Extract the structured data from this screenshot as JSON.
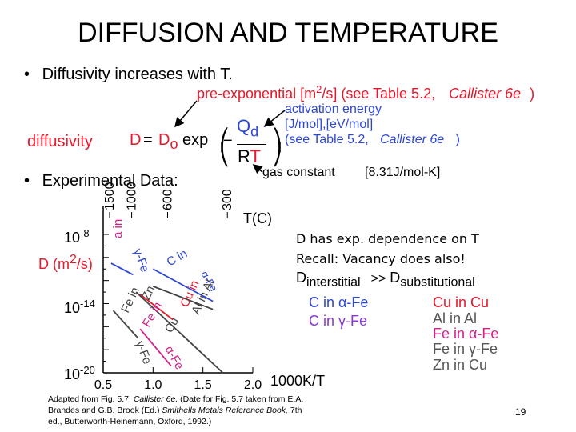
{
  "title": "DIFFUSION AND TEMPERATURE",
  "bullets": {
    "b1": "Diffusivity increases with T.",
    "b2": "Experimental Data:"
  },
  "equation": {
    "diffusivity_label": "diffusivity",
    "D": "D",
    "equals": "=",
    "D0_D": "D",
    "D0_sub": "o",
    "exp": "exp",
    "minus": "−",
    "Q": "Q",
    "d_sub": "d",
    "R": "R",
    "T": "T",
    "preexp_a": "pre-exponential [m",
    "preexp_sup": "2",
    "preexp_b": "/s] (see Table 5.2,",
    "preexp_italic": "Callister 6e",
    "preexp_close": ")",
    "act1": "activation energy",
    "act2": "[J/mol],[eV/mol]",
    "act3": "(see Table 5.2,",
    "act3_italic": "Callister 6e",
    "act3_close": ")",
    "gas_label": "gas constant",
    "gas_value": "[8.31J/mol-K]"
  },
  "chart_data": {
    "type": "line",
    "xlabel": "1000K/T",
    "ylabel_D": "D (m",
    "ylabel_sup": "2",
    "ylabel_end": "/s)",
    "top_axis_label": "T(C)",
    "top_ticks": [
      "1500",
      "1000",
      "600",
      "300"
    ],
    "y_ticks": {
      "t1_base": "10",
      "t1_exp": "-8",
      "t2_base": "10",
      "t2_exp": "-14",
      "t3_base": "10",
      "t3_exp": "-20"
    },
    "x_ticks": [
      "0.5",
      "1.0",
      "1.5",
      "2.0"
    ],
    "xlim": [
      0.5,
      2.0
    ],
    "ylim_log10": [
      -20,
      -8
    ],
    "colors": {
      "blue": "#2c46d6",
      "pink": "#d41f8a",
      "red": "#e8172b",
      "gray": "#444444"
    },
    "series": [
      {
        "name": "C in α-Fe",
        "x": [
          1.0,
          1.6
        ],
        "log10D": [
          -11,
          -13.8
        ],
        "color": "#2c46d6",
        "label": "C in α-Fe"
      },
      {
        "name": "C in γ-Fe",
        "x": [
          0.58,
          0.8
        ],
        "log10D": [
          -10.5,
          -11.5
        ],
        "color": "#2c46d6",
        "label": "C in"
      },
      {
        "name": "Al in Al",
        "x": [
          1.0,
          1.6
        ],
        "log10D": [
          -12.5,
          -14.5
        ],
        "color": "#444444",
        "label": "Al in Al"
      },
      {
        "name": "Cu in Cu",
        "x": [
          0.87,
          1.2
        ],
        "log10D": [
          -13.2,
          -15.4
        ],
        "color": "#e8172b",
        "label": "Cu in Cu"
      },
      {
        "name": "Zn in Cu",
        "x": [
          0.83,
          1.7
        ],
        "log10D": [
          -13.0,
          -20.0
        ],
        "color": "#444444",
        "label": "Zn in Cu"
      },
      {
        "name": "Fe in α-Fe",
        "x": [
          0.87,
          1.18
        ],
        "log10D": [
          -16.2,
          -19.4
        ],
        "color": "#d41f8a",
        "label": "Fe in α-Fe"
      },
      {
        "name": "Fe in γ-Fe",
        "x": [
          0.6,
          0.85
        ],
        "log10D": [
          -14.6,
          -17.0
        ],
        "color": "#444444",
        "label": "Fe in γ-Fe"
      }
    ],
    "curve_labels": {
      "c_in": "C in",
      "gamma_fe": "γ-Fe",
      "alpha_fe_blue": "α-Fe",
      "al_in_al": "Al in Al",
      "fe_in_mid": "Fe in",
      "cu_in": "Cu in",
      "zn": "Zn",
      "cu": "Cu",
      "fe_in_pink": "Fe in",
      "fe_in_gray": "Fe in",
      "gamma_fe_gray": "γ-Fe",
      "alpha_fe_pink": "α-Fe",
      "a_in": "a in"
    }
  },
  "notes": {
    "line1": "D has exp. dependence on T",
    "line2": "Recall:  Vacancy does also!",
    "D_int": "D",
    "int_sub": "interstitial",
    "gg": ">>",
    "D_sub": "D",
    "sub_sub": "substitutional"
  },
  "interstitial_list": [
    "C in α-Fe",
    "C in γ-Fe"
  ],
  "substitutional_list": [
    {
      "text": "Cu in Cu",
      "color": "#e8172b"
    },
    {
      "text": "Al in Al",
      "color": "#555555"
    },
    {
      "text": "Fe in α-Fe",
      "color": "#d41f8a"
    },
    {
      "text": "Fe in γ-Fe",
      "color": "#555555"
    },
    {
      "text": "Zn in Cu",
      "color": "#555555"
    }
  ],
  "caption": {
    "p1": "Adapted from Fig. 5.7, ",
    "p2": "Callister 6e.",
    "p3": " (Date for Fig. 5.7 taken from E.A.",
    "l2a": "Brandes and G.B. Brook (Ed.) ",
    "l2b": "Smithells Metals Reference Book,",
    "l2c": " 7th",
    "l3": "ed., Butterworth-Heinemann, Oxford, 1992.)"
  },
  "page_number": "19"
}
